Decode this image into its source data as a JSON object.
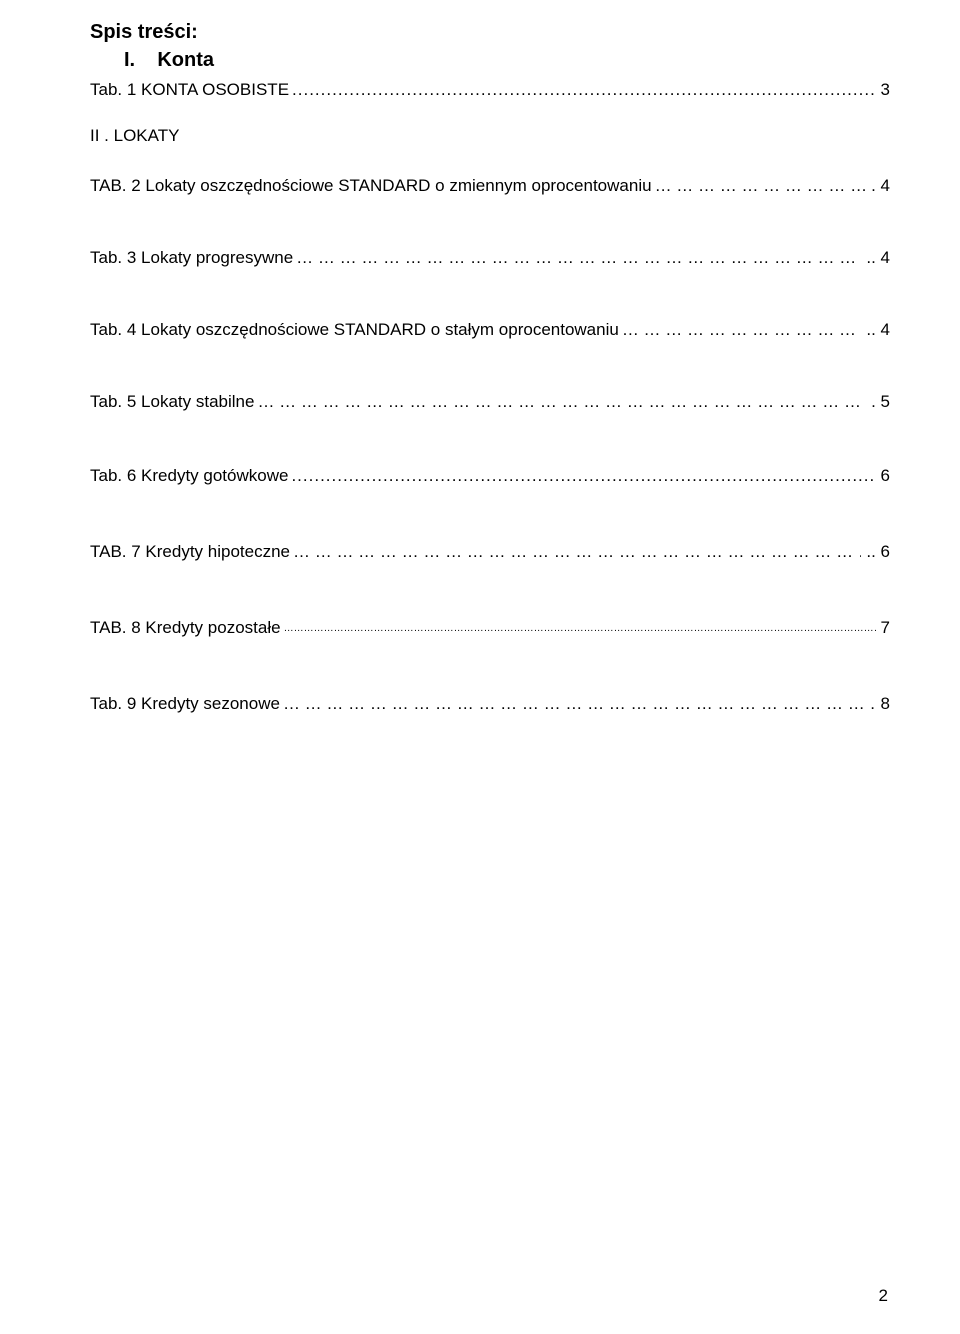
{
  "heading": {
    "title": "Spis treści:",
    "section_roman": "I.",
    "section_name": "Konta"
  },
  "entries": [
    {
      "label": "Tab. 1 KONTA OSOBISTE ",
      "leader": "dots",
      "page": "3",
      "gap": "gap-3"
    },
    {
      "label": "II . LOKATY",
      "leader": "",
      "page": "",
      "gap": "gap-26"
    },
    {
      "label": "TAB. 2 Lokaty oszczędnościowe STANDARD o zmiennym oprocentowaniu ",
      "leader": "dots-sparse",
      "page": ". 4",
      "gap": "gap-30"
    },
    {
      "label": "Tab. 3 Lokaty progresywne ",
      "leader": "dots-sparse",
      "page": ".. 4",
      "gap": "gap-52"
    },
    {
      "label": "Tab. 4 Lokaty oszczędnościowe STANDARD o stałym oprocentowaniu ",
      "leader": "dots-sparse",
      "page": ".. 4",
      "gap": "gap-52"
    },
    {
      "label": "Tab. 5 Lokaty stabilne ",
      "leader": "dots-sparse",
      "page": ". 5",
      "gap": "gap-52"
    },
    {
      "label": "Tab. 6 Kredyty gotówkowe",
      "leader": "dots",
      "page": "6",
      "gap": "gap-54"
    },
    {
      "label": "TAB. 7 Kredyty hipoteczne ",
      "leader": "dots-sparse",
      "page": ".. 6",
      "gap": "gap-56"
    },
    {
      "label": "TAB. 8 Kredyty pozostałe ",
      "leader": "tiny",
      "page": " 7",
      "gap": "gap-56"
    },
    {
      "label": "Tab. 9 Kredyty sezonowe ",
      "leader": "dots-sparse",
      "page": "8",
      "gap": "gap-56"
    }
  ],
  "page_number": "2"
}
